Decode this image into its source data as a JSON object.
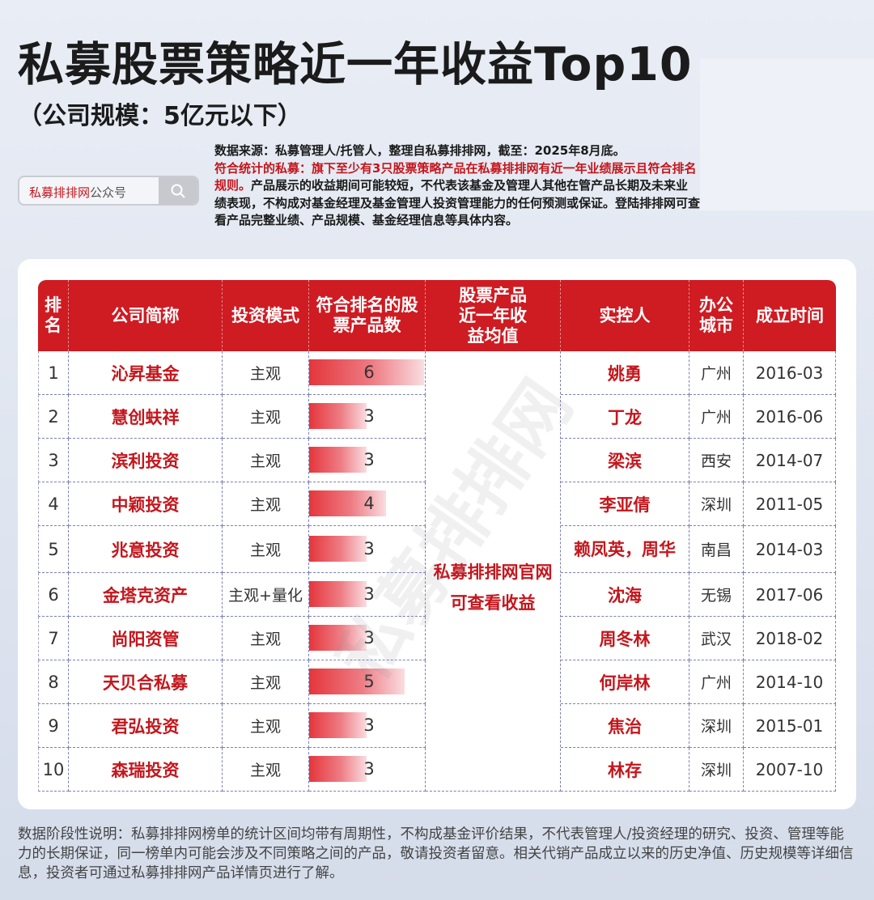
{
  "title": "私募股票策略近一年收益Top10",
  "subtitle": "（公司规模：5亿元以下）",
  "search": {
    "placeholder_prefix": "私募排排网",
    "placeholder_suffix": "公众号",
    "icon": "search-icon"
  },
  "note": {
    "line1": "数据来源：私募管理人/托管人，整理自私募排排网，截至：2025年8月底。",
    "red": "符合统计的私募：旗下至少有3只股票策略产品在私募排排网有近一年业绩展示且符合排名规则。",
    "rest": "产品展示的收益期间可能较短，不代表该基金及管理人其他在管产品长期及未来业绩表现，不构成对基金经理及基金管理人投资管理能力的任何预测或保证。登陆排排网可查看产品完整业绩、产品规模、基金经理信息等具体内容。"
  },
  "headers": {
    "rank": "排名",
    "company": "公司简称",
    "mode": "投资模式",
    "count": "符合排名的股票产品数",
    "return": "股票产品近一年收益均值",
    "controller": "实控人",
    "city": "办公城市",
    "founded": "成立时间"
  },
  "merged_text": "私募排排网官网可查看收益",
  "rows": [
    {
      "rank": "1",
      "company": "沁昇基金",
      "mode": "主观",
      "count": "6",
      "count_value": 6,
      "controller": "姚勇",
      "city": "广州",
      "founded": "2016-03"
    },
    {
      "rank": "2",
      "company": "慧创蚨祥",
      "mode": "主观",
      "count": "3",
      "count_value": 3,
      "controller": "丁龙",
      "city": "广州",
      "founded": "2016-06"
    },
    {
      "rank": "3",
      "company": "滨利投资",
      "mode": "主观",
      "count": "3",
      "count_value": 3,
      "controller": "梁滨",
      "city": "西安",
      "founded": "2014-07"
    },
    {
      "rank": "4",
      "company": "中颖投资",
      "mode": "主观",
      "count": "4",
      "count_value": 4,
      "controller": "李亚倩",
      "city": "深圳",
      "founded": "2011-05"
    },
    {
      "rank": "5",
      "company": "兆意投资",
      "mode": "主观",
      "count": "3",
      "count_value": 3,
      "controller": "赖凤英，周华",
      "city": "南昌",
      "founded": "2014-03"
    },
    {
      "rank": "6",
      "company": "金塔克资产",
      "mode": "主观+量化",
      "count": "3",
      "count_value": 3,
      "controller": "沈海",
      "city": "无锡",
      "founded": "2017-06"
    },
    {
      "rank": "7",
      "company": "尚阳资管",
      "mode": "主观",
      "count": "3",
      "count_value": 3,
      "controller": "周冬林",
      "city": "武汉",
      "founded": "2018-02"
    },
    {
      "rank": "8",
      "company": "天贝合私募",
      "mode": "主观",
      "count": "5",
      "count_value": 5,
      "controller": "何岸林",
      "city": "广州",
      "founded": "2014-10"
    },
    {
      "rank": "9",
      "company": "君弘投资",
      "mode": "主观",
      "count": "3",
      "count_value": 3,
      "controller": "焦治",
      "city": "深圳",
      "founded": "2015-01"
    },
    {
      "rank": "10",
      "company": "森瑞投资",
      "mode": "主观",
      "count": "3",
      "count_value": 3,
      "controller": "林存",
      "city": "深圳",
      "founded": "2007-10"
    }
  ],
  "watermark": "私募排排网",
  "footer": "数据阶段性说明：私募排排网榜单的统计区间均带有周期性，不构成基金评价结果，不代表管理人/投资经理的研究、投资、管理等能力的长期保证，同一榜单内可能会涉及不同策略之间的产品，敬请投资者留意。相关代销产品成立以来的历史净值、历史规模等详细信息，投资者可通过私募排排网产品详情页进行了解。",
  "colors": {
    "accent": "#cf1b22",
    "text_red": "#c4161c"
  }
}
